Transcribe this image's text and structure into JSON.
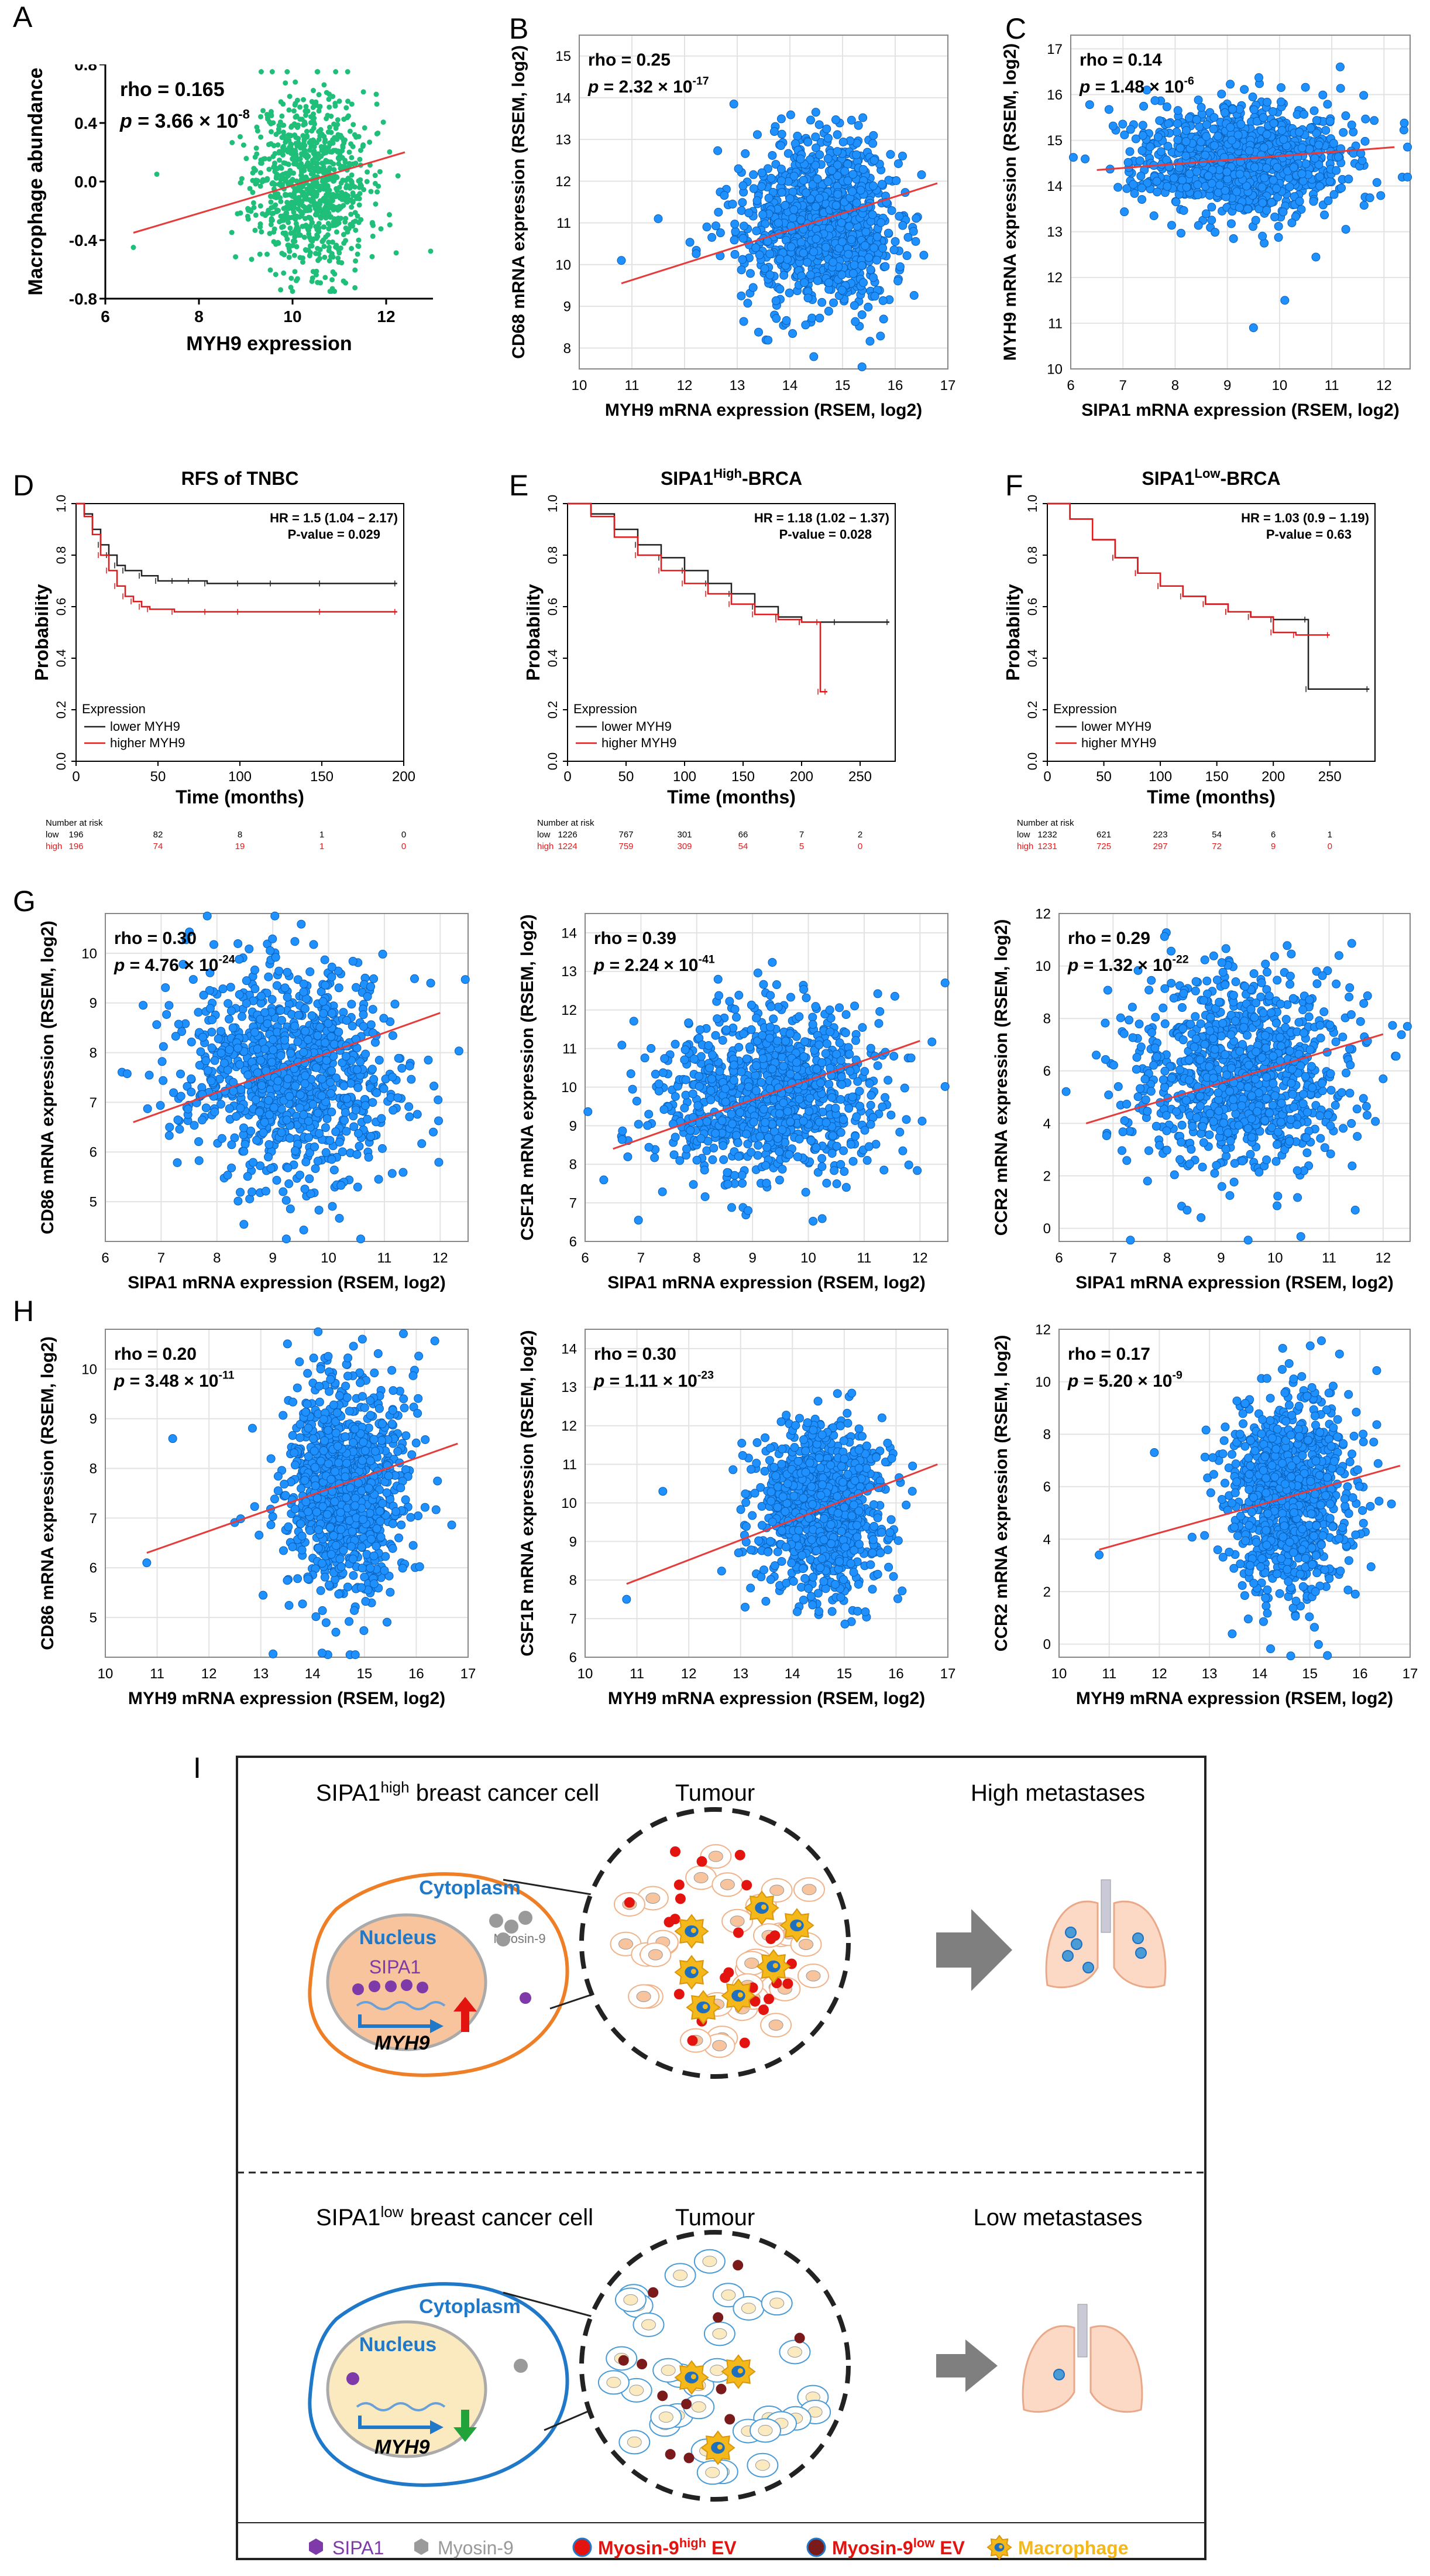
{
  "panel_letters": [
    "A",
    "B",
    "C",
    "D",
    "E",
    "F",
    "G",
    "H",
    "I"
  ],
  "chart_data": [
    {
      "id": "A",
      "type": "scatter",
      "title": "",
      "xlabel": "MYH9 expression",
      "ylabel": "Macrophage abundance",
      "xlim": [
        6,
        13
      ],
      "ylim": [
        -0.8,
        0.8
      ],
      "xticks": [
        6,
        8,
        10,
        12
      ],
      "yticks": [
        -0.8,
        -0.4,
        0.0,
        0.4,
        0.8
      ],
      "ytick_labels": [
        "-0.8",
        "-0.4",
        "0.0",
        "0.4",
        "0.8"
      ],
      "stat1": "rho = 0.165",
      "stat2": "p = 3.66 × 10",
      "stat2_exp": "-8",
      "fit": {
        "x": [
          6.6,
          12.4
        ],
        "y": [
          -0.35,
          0.2
        ]
      },
      "point_color": "#1fbf7a",
      "cloud": {
        "n": 950,
        "mx": 10.4,
        "sx": 0.6,
        "my": 0.0,
        "sy": 0.3,
        "seed": 11,
        "outliers": [
          [
            6.6,
            -0.45
          ],
          [
            7.1,
            0.05
          ]
        ]
      }
    },
    {
      "id": "B",
      "type": "scatter",
      "xlabel": "MYH9 mRNA expression (RSEM, log2)",
      "ylabel": "CD68 mRNA expression (RSEM, log2)",
      "xlim": [
        10,
        17
      ],
      "ylim": [
        7.5,
        15.5
      ],
      "xticks": [
        10,
        11,
        12,
        13,
        14,
        15,
        16,
        17
      ],
      "yticks": [
        8,
        9,
        10,
        11,
        12,
        13,
        14,
        15
      ],
      "ytick_labels": [
        "8",
        "9",
        "10",
        "11",
        "12",
        "13",
        "14",
        "15"
      ],
      "stat1": "rho = 0.25",
      "stat2": "p = 2.32 × 10",
      "stat2_exp": "-17",
      "fit": {
        "x": [
          10.8,
          16.8
        ],
        "y": [
          9.55,
          11.95
        ]
      },
      "point_color": "#1e90ff",
      "cloud": {
        "n": 1050,
        "mx": 14.6,
        "sx": 0.7,
        "my": 11.0,
        "sy": 1.0,
        "seed": 22,
        "outliers": [
          [
            10.8,
            10.1
          ],
          [
            11.5,
            11.1
          ]
        ]
      }
    },
    {
      "id": "C",
      "type": "scatter",
      "xlabel": "SIPA1 mRNA expression (RSEM, log2)",
      "ylabel": "MYH9 mRNA expression (RSEM, log2)",
      "xlim": [
        6,
        12.5
      ],
      "ylim": [
        10,
        17.3
      ],
      "xticks": [
        6,
        7,
        8,
        9,
        10,
        11,
        12
      ],
      "yticks": [
        10,
        11,
        12,
        13,
        14,
        15,
        16,
        17
      ],
      "ytick_labels": [
        "10",
        "11",
        "12",
        "13",
        "14",
        "15",
        "16",
        "17"
      ],
      "stat1": "rho = 0.14",
      "stat2": "p = 1.48 × 10",
      "stat2_exp": "-6",
      "fit": {
        "x": [
          6.5,
          12.2
        ],
        "y": [
          14.35,
          14.85
        ]
      },
      "point_color": "#1e90ff",
      "cloud": {
        "n": 1050,
        "mx": 9.3,
        "sx": 1.0,
        "my": 14.6,
        "sy": 0.6,
        "seed": 33,
        "outliers": [
          [
            9.5,
            10.9
          ],
          [
            10.1,
            11.5
          ]
        ]
      }
    },
    {
      "id": "D",
      "type": "km",
      "title": "RFS of TNBC",
      "xlabel": "Time (months)",
      "ylabel": "Probability",
      "xlim": [
        0,
        200
      ],
      "xticks": [
        0,
        50,
        100,
        150,
        200
      ],
      "yticks": [
        0.0,
        0.2,
        0.4,
        0.6,
        0.8,
        1.0
      ],
      "ytick_labels": [
        "0.0",
        "0.2",
        "0.4",
        "0.6",
        "0.8",
        "1.0"
      ],
      "hr": "HR = 1.5 (1.04 − 2.17)",
      "pval": "P-value = 0.029",
      "legend_title": "Expression",
      "legend": [
        "lower MYH9",
        "higher MYH9"
      ],
      "series": [
        {
          "name": "lower MYH9",
          "t": [
            0,
            5,
            10,
            15,
            20,
            25,
            30,
            40,
            50,
            60,
            70,
            80,
            100,
            120,
            150,
            196
          ],
          "s": [
            1,
            0.96,
            0.9,
            0.84,
            0.8,
            0.76,
            0.74,
            0.72,
            0.7,
            0.7,
            0.7,
            0.69,
            0.69,
            0.69,
            0.69,
            0.69
          ]
        },
        {
          "name": "higher MYH9",
          "t": [
            0,
            5,
            10,
            15,
            20,
            25,
            30,
            35,
            40,
            45,
            60,
            80,
            100,
            150,
            196
          ],
          "s": [
            1,
            0.95,
            0.88,
            0.8,
            0.74,
            0.68,
            0.64,
            0.62,
            0.6,
            0.59,
            0.58,
            0.58,
            0.58,
            0.58,
            0.58
          ]
        }
      ],
      "risk_title": "Number at risk",
      "risk_rows": [
        {
          "label": "low",
          "values": [
            "196",
            "82",
            "8",
            "1",
            "0"
          ]
        },
        {
          "label": "high",
          "values": [
            "196",
            "74",
            "19",
            "1",
            "0"
          ]
        }
      ]
    },
    {
      "id": "E",
      "type": "km",
      "title": "SIPA1",
      "title_sup": "High",
      "title_suffix": "-BRCA",
      "xlabel": "Time (months)",
      "ylabel": "Probability",
      "xlim": [
        0,
        280
      ],
      "xticks": [
        0,
        50,
        100,
        150,
        200,
        250
      ],
      "yticks": [
        0.0,
        0.2,
        0.4,
        0.6,
        0.8,
        1.0
      ],
      "ytick_labels": [
        "0.0",
        "0.2",
        "0.4",
        "0.6",
        "0.8",
        "1.0"
      ],
      "hr": "HR = 1.18 (1.02 − 1.37)",
      "pval": "P-value = 0.028",
      "legend_title": "Expression",
      "legend": [
        "lower MYH9",
        "higher MYH9"
      ],
      "series": [
        {
          "name": "lower MYH9",
          "t": [
            0,
            20,
            40,
            60,
            80,
            100,
            120,
            140,
            160,
            180,
            200,
            230,
            275
          ],
          "s": [
            1,
            0.96,
            0.9,
            0.84,
            0.79,
            0.74,
            0.69,
            0.65,
            0.6,
            0.56,
            0.54,
            0.54,
            0.54
          ]
        },
        {
          "name": "higher MYH9",
          "t": [
            0,
            20,
            40,
            60,
            80,
            100,
            120,
            140,
            160,
            180,
            200,
            215,
            216,
            222
          ],
          "s": [
            1,
            0.95,
            0.87,
            0.8,
            0.74,
            0.69,
            0.65,
            0.61,
            0.57,
            0.55,
            0.54,
            0.54,
            0.27,
            0.27
          ]
        }
      ],
      "risk_title": "Number at risk",
      "risk_rows": [
        {
          "label": "low",
          "values": [
            "1226",
            "767",
            "301",
            "66",
            "7",
            "2"
          ]
        },
        {
          "label": "high",
          "values": [
            "1224",
            "759",
            "309",
            "54",
            "5",
            "0"
          ]
        }
      ]
    },
    {
      "id": "F",
      "type": "km",
      "title": "SIPA1",
      "title_sup": "Low",
      "title_suffix": "-BRCA",
      "xlabel": "Time (months)",
      "ylabel": "Probability",
      "xlim": [
        0,
        290
      ],
      "xticks": [
        0,
        50,
        100,
        150,
        200,
        250
      ],
      "yticks": [
        0.0,
        0.2,
        0.4,
        0.6,
        0.8,
        1.0
      ],
      "ytick_labels": [
        "0.0",
        "0.2",
        "0.4",
        "0.6",
        "0.8",
        "1.0"
      ],
      "hr": "HR = 1.03 (0.9 − 1.19)",
      "pval": "P-value = 0.63",
      "legend_title": "Expression",
      "legend": [
        "lower MYH9",
        "higher MYH9"
      ],
      "series": [
        {
          "name": "lower MYH9",
          "t": [
            0,
            20,
            40,
            60,
            80,
            100,
            120,
            140,
            160,
            180,
            200,
            230,
            231,
            285
          ],
          "s": [
            1,
            0.94,
            0.86,
            0.79,
            0.73,
            0.68,
            0.64,
            0.61,
            0.58,
            0.56,
            0.55,
            0.55,
            0.28,
            0.28
          ]
        },
        {
          "name": "higher MYH9",
          "t": [
            0,
            20,
            40,
            60,
            80,
            100,
            120,
            140,
            160,
            180,
            200,
            220,
            250
          ],
          "s": [
            1,
            0.94,
            0.86,
            0.79,
            0.73,
            0.68,
            0.64,
            0.61,
            0.58,
            0.56,
            0.5,
            0.49,
            0.49
          ]
        }
      ],
      "risk_title": "Number at risk",
      "risk_rows": [
        {
          "label": "low",
          "values": [
            "1232",
            "621",
            "223",
            "54",
            "6",
            "1"
          ]
        },
        {
          "label": "high",
          "values": [
            "1231",
            "725",
            "297",
            "72",
            "9",
            "0"
          ]
        }
      ]
    },
    {
      "id": "G1",
      "type": "scatter",
      "xlabel": "SIPA1 mRNA expression (RSEM, log2)",
      "ylabel": "CD86 mRNA expression (RSEM, log2)",
      "xlim": [
        6,
        12.5
      ],
      "ylim": [
        4.2,
        10.8
      ],
      "xticks": [
        6,
        7,
        8,
        9,
        10,
        11,
        12
      ],
      "yticks": [
        5,
        6,
        7,
        8,
        9,
        10
      ],
      "ytick_labels": [
        "5",
        "6",
        "7",
        "8",
        "9",
        "10"
      ],
      "stat1": "rho = 0.30",
      "stat2": "p = 4.76 × 10",
      "stat2_exp": "-24",
      "fit": {
        "x": [
          6.5,
          12
        ],
        "y": [
          6.6,
          8.8
        ]
      },
      "point_color": "#1e90ff",
      "cloud": {
        "n": 1000,
        "mx": 9.3,
        "sx": 1.0,
        "my": 7.6,
        "sy": 1.1,
        "seed": 44,
        "outliers": []
      }
    },
    {
      "id": "G2",
      "type": "scatter",
      "xlabel": "SIPA1 mRNA expression (RSEM, log2)",
      "ylabel": "CSF1R mRNA expression (RSEM, log2)",
      "xlim": [
        6,
        12.5
      ],
      "ylim": [
        6,
        14.5
      ],
      "xticks": [
        6,
        7,
        8,
        9,
        10,
        11,
        12
      ],
      "yticks": [
        6,
        7,
        8,
        9,
        10,
        11,
        12,
        13,
        14
      ],
      "ytick_labels": [
        "6",
        "7",
        "8",
        "9",
        "10",
        "11",
        "12",
        "13",
        "14"
      ],
      "stat1": "rho = 0.39",
      "stat2": "p = 2.24 × 10",
      "stat2_exp": "-41",
      "fit": {
        "x": [
          6.5,
          12
        ],
        "y": [
          8.4,
          11.2
        ]
      },
      "point_color": "#1e90ff",
      "cloud": {
        "n": 1000,
        "mx": 9.3,
        "sx": 1.0,
        "my": 9.8,
        "sy": 1.1,
        "seed": 55,
        "outliers": []
      }
    },
    {
      "id": "G3",
      "type": "scatter",
      "xlabel": "SIPA1 mRNA expression (RSEM, log2)",
      "ylabel": "CCR2 mRNA expression (RSEM, log2)",
      "xlim": [
        6,
        12.5
      ],
      "ylim": [
        -0.5,
        12
      ],
      "xticks": [
        6,
        7,
        8,
        9,
        10,
        11,
        12
      ],
      "yticks": [
        0,
        2,
        4,
        6,
        8,
        10,
        12
      ],
      "ytick_labels": [
        "0",
        "2",
        "4",
        "6",
        "8",
        "10",
        "12"
      ],
      "stat1": "rho = 0.29",
      "stat2": "p = 1.32 × 10",
      "stat2_exp": "-22",
      "fit": {
        "x": [
          6.5,
          12
        ],
        "y": [
          4.0,
          7.4
        ]
      },
      "point_color": "#1e90ff",
      "cloud": {
        "n": 1000,
        "mx": 9.3,
        "sx": 1.0,
        "my": 5.8,
        "sy": 1.9,
        "seed": 66,
        "outliers": []
      }
    },
    {
      "id": "H1",
      "type": "scatter",
      "xlabel": "MYH9 mRNA expression (RSEM, log2)",
      "ylabel": "CD86 mRNA expression (RSEM, log2)",
      "xlim": [
        10,
        17
      ],
      "ylim": [
        4.2,
        10.8
      ],
      "xticks": [
        10,
        11,
        12,
        13,
        14,
        15,
        16,
        17
      ],
      "yticks": [
        5,
        6,
        7,
        8,
        9,
        10
      ],
      "ytick_labels": [
        "5",
        "6",
        "7",
        "8",
        "9",
        "10"
      ],
      "stat1": "rho = 0.20",
      "stat2": "p = 3.48 × 10",
      "stat2_exp": "-11",
      "fit": {
        "x": [
          10.8,
          16.8
        ],
        "y": [
          6.3,
          8.5
        ]
      },
      "point_color": "#1e90ff",
      "cloud": {
        "n": 1000,
        "mx": 14.6,
        "sx": 0.6,
        "my": 7.6,
        "sy": 1.1,
        "seed": 77,
        "outliers": [
          [
            10.8,
            6.1
          ],
          [
            11.3,
            8.6
          ]
        ]
      }
    },
    {
      "id": "H2",
      "type": "scatter",
      "xlabel": "MYH9 mRNA expression (RSEM, log2)",
      "ylabel": "CSF1R mRNA expression (RSEM, log2)",
      "xlim": [
        10,
        17
      ],
      "ylim": [
        6,
        14.5
      ],
      "xticks": [
        10,
        11,
        12,
        13,
        14,
        15,
        16,
        17
      ],
      "yticks": [
        6,
        7,
        8,
        9,
        10,
        11,
        12,
        13,
        14
      ],
      "ytick_labels": [
        "6",
        "7",
        "8",
        "9",
        "10",
        "11",
        "12",
        "13",
        "14"
      ],
      "stat1": "rho = 0.30",
      "stat2": "p = 1.11 × 10",
      "stat2_exp": "-23",
      "fit": {
        "x": [
          10.8,
          16.8
        ],
        "y": [
          7.9,
          11.0
        ]
      },
      "point_color": "#1e90ff",
      "cloud": {
        "n": 1000,
        "mx": 14.6,
        "sx": 0.6,
        "my": 9.8,
        "sy": 1.1,
        "seed": 88,
        "outliers": [
          [
            10.8,
            7.5
          ],
          [
            11.5,
            10.3
          ]
        ]
      }
    },
    {
      "id": "H3",
      "type": "scatter",
      "xlabel": "MYH9 mRNA expression (RSEM, log2)",
      "ylabel": "CCR2 mRNA expression (RSEM, log2)",
      "xlim": [
        10,
        17
      ],
      "ylim": [
        -0.5,
        12
      ],
      "xticks": [
        10,
        11,
        12,
        13,
        14,
        15,
        16,
        17
      ],
      "yticks": [
        0,
        2,
        4,
        6,
        8,
        10,
        12
      ],
      "ytick_labels": [
        "0",
        "2",
        "4",
        "6",
        "8",
        "10",
        "12"
      ],
      "stat1": "rho = 0.17",
      "stat2": "p = 5.20 × 10",
      "stat2_exp": "-9",
      "fit": {
        "x": [
          10.8,
          16.8
        ],
        "y": [
          3.6,
          6.8
        ]
      },
      "point_color": "#1e90ff",
      "cloud": {
        "n": 1000,
        "mx": 14.6,
        "sx": 0.6,
        "my": 5.6,
        "sy": 1.9,
        "seed": 99,
        "outliers": [
          [
            10.8,
            3.4
          ],
          [
            11.9,
            7.3
          ]
        ]
      }
    }
  ],
  "diagram": {
    "letter": "I",
    "top": {
      "cell_title": "SIPA1",
      "cell_title_sup": "high",
      "cell_title_rest": " breast cancer cell",
      "tumour": "Tumour",
      "outcome": "High metastases",
      "cytoplasm": "Cytoplasm",
      "nucleus": "Nucleus",
      "sipa1": "SIPA1",
      "myosin": "Myosin-9",
      "gene": "MYH9"
    },
    "bottom": {
      "cell_title": "SIPA1",
      "cell_title_sup": "low",
      "cell_title_rest": " breast cancer  cell",
      "tumour": "Tumour",
      "outcome": "Low metastases",
      "cytoplasm": "Cytoplasm",
      "nucleus": "Nucleus",
      "gene": "MYH9"
    },
    "legend": {
      "sipa1": "SIPA1",
      "myosin": "Myosin-9",
      "ev_high_a": "Myosin-9",
      "ev_high_sup": "high",
      "ev_high_b": " EV",
      "ev_low_a": "Myosin-9",
      "ev_low_sup": "low",
      "ev_low_b": " EV",
      "macrophage": "Macrophage"
    },
    "colors": {
      "orange": "#ef7f26",
      "blue": "#1f78c8",
      "purple": "#7d3aa8",
      "grey": "#9a9a9a",
      "red": "#e3140f",
      "darkred": "#7a1a1a",
      "yellow": "#f4b81a",
      "arrow_grey": "#7f7f7f"
    }
  }
}
